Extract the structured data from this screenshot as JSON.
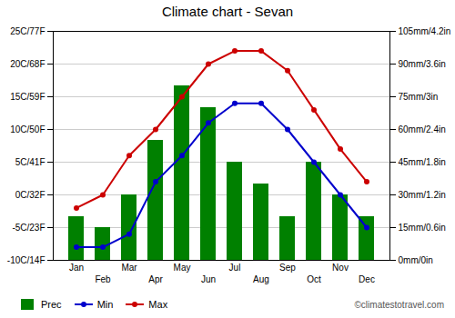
{
  "chart_data": {
    "type": "combo",
    "title": "Climate chart - Sevan",
    "categories": [
      "Jan",
      "Feb",
      "Mar",
      "Apr",
      "May",
      "Jun",
      "Jul",
      "Aug",
      "Sep",
      "Oct",
      "Nov",
      "Dec"
    ],
    "series": [
      {
        "name": "Prec",
        "type": "bar",
        "axis": "y2",
        "color": "#008000",
        "values": [
          20,
          15,
          30,
          55,
          80,
          70,
          45,
          35,
          20,
          45,
          30,
          20
        ]
      },
      {
        "name": "Min",
        "type": "line",
        "marker": "circle",
        "color": "#0000CC",
        "values": [
          -8,
          -8,
          -6,
          2,
          6,
          11,
          14,
          14,
          10,
          5,
          0,
          -5
        ]
      },
      {
        "name": "Max",
        "type": "line",
        "marker": "circle",
        "color": "#CC0000",
        "values": [
          -2,
          0,
          6,
          10,
          15,
          20,
          22,
          22,
          19,
          13,
          7,
          2
        ]
      }
    ],
    "ylim": [
      -10,
      25
    ],
    "yticks": [
      {
        "value": -10,
        "label": "-10C/14F"
      },
      {
        "value": -5,
        "label": "-5C/23F"
      },
      {
        "value": 0,
        "label": "0C/32F"
      },
      {
        "value": 5,
        "label": "5C/41F"
      },
      {
        "value": 10,
        "label": "10C/50F"
      },
      {
        "value": 15,
        "label": "15C/59F"
      },
      {
        "value": 20,
        "label": "20C/68F"
      },
      {
        "value": 25,
        "label": "25C/77F"
      }
    ],
    "y2lim": [
      0,
      105
    ],
    "y2ticks": [
      {
        "value": 0,
        "label": "0mm/0in"
      },
      {
        "value": 15,
        "label": "15mm/0.6in"
      },
      {
        "value": 30,
        "label": "30mm/1.2in"
      },
      {
        "value": 45,
        "label": "45mm/1.8in"
      },
      {
        "value": 60,
        "label": "60mm/2.4in"
      },
      {
        "value": 75,
        "label": "75mm/3in"
      },
      {
        "value": 90,
        "label": "90mm/3.6in"
      },
      {
        "value": 105,
        "label": "105mm/4.2in"
      }
    ],
    "grid": true,
    "legend": "lower left",
    "annotations": [
      "©climatestotravel.com"
    ]
  }
}
